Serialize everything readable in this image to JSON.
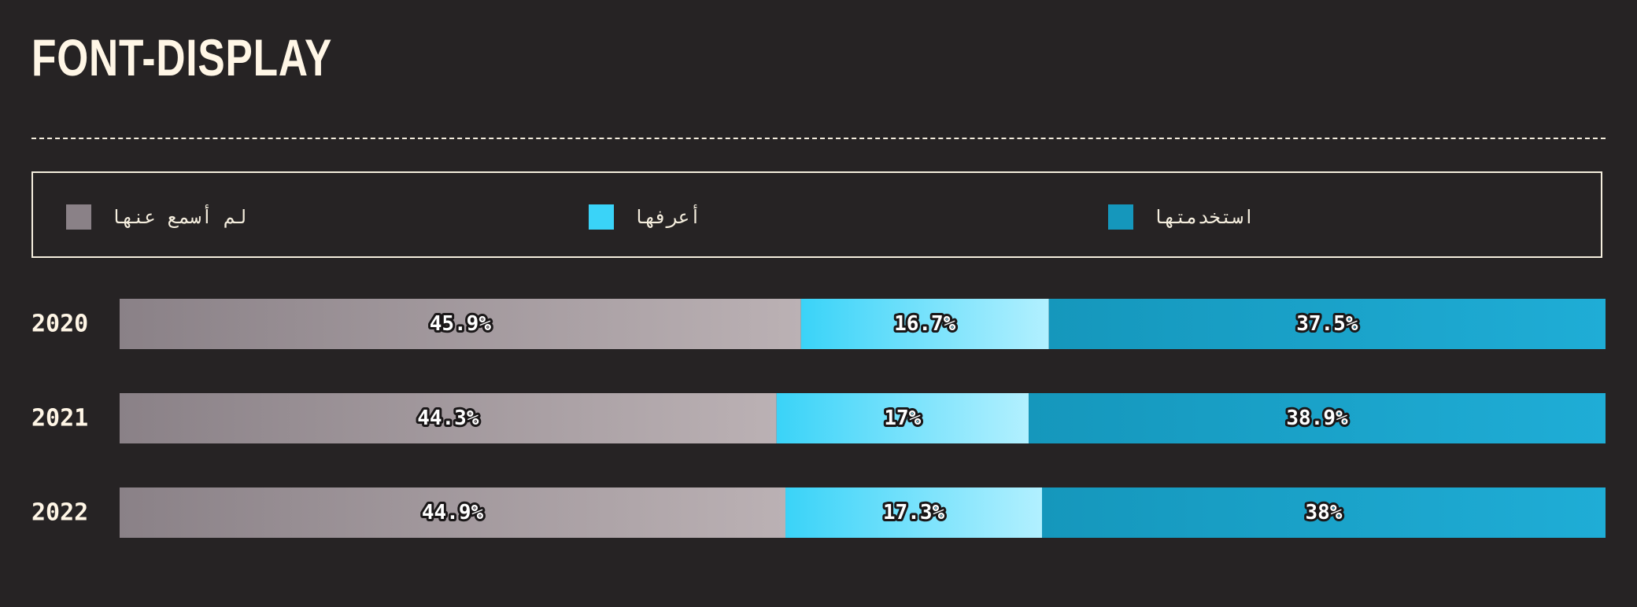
{
  "title": "FONT-DISPLAY",
  "legend": [
    {
      "label": "لم أسمع عنها",
      "color": "#8a8187"
    },
    {
      "label": "أعرفها",
      "color": "#3ad3f8"
    },
    {
      "label": "استخدمتها",
      "color": "#1597bc"
    }
  ],
  "chart_data": {
    "type": "bar",
    "orientation": "horizontal",
    "stacked": true,
    "normalized_to_percent": true,
    "categories": [
      "2020",
      "2021",
      "2022"
    ],
    "series": [
      {
        "name": "لم أسمع عنها",
        "values": [
          45.9,
          44.3,
          44.9
        ],
        "labels": [
          "45.9%",
          "44.3%",
          "44.9%"
        ],
        "color_start": "#8a8187",
        "color_end": "#bbb1b4"
      },
      {
        "name": "أعرفها",
        "values": [
          16.7,
          17,
          17.3
        ],
        "labels": [
          "16.7%",
          "17%",
          "17.3%"
        ],
        "color_start": "#3ad3f8",
        "color_end": "#b2f0ff"
      },
      {
        "name": "استخدمتها",
        "values": [
          37.5,
          38.9,
          38
        ],
        "labels": [
          "37.5%",
          "38.9%",
          "38%"
        ],
        "color_start": "#1597bc",
        "color_end": "#1fadd6"
      }
    ],
    "legend_position": "top",
    "grid": false
  }
}
